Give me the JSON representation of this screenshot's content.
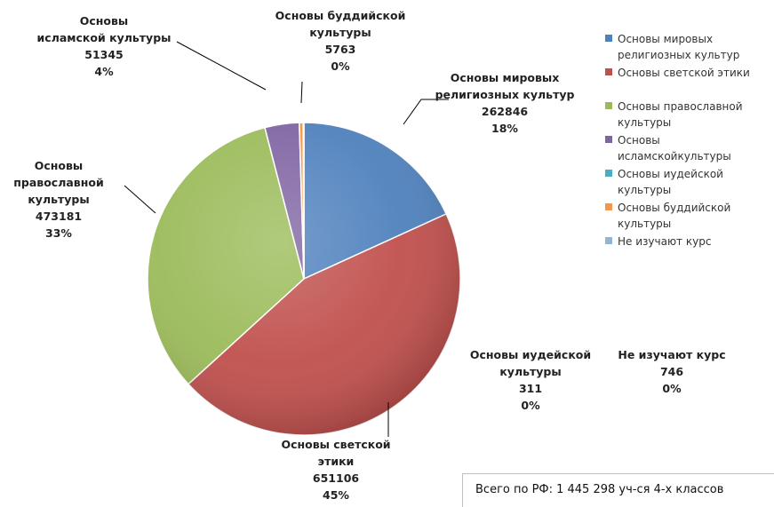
{
  "chart_data": {
    "type": "pie",
    "title": "",
    "slices": [
      {
        "name": "Основы мировых религиозных культур",
        "value": 262846,
        "percent": "18%",
        "color": "#4f81bd",
        "label_lines": [
          "Основы мировых",
          "религиозных культур"
        ]
      },
      {
        "name": "Основы светской этики",
        "value": 651106,
        "percent": "45%",
        "color": "#c0504d",
        "label_lines": [
          "Основы светской",
          "этики"
        ]
      },
      {
        "name": "Основы православной культуры",
        "value": 473181,
        "percent": "33%",
        "color": "#9bbb59",
        "label_lines": [
          "Основы",
          "православной",
          "культуры"
        ]
      },
      {
        "name": "Основы исламскойкультуры",
        "value": 51345,
        "percent": "4%",
        "color": "#8064a2",
        "label_lines": [
          "Основы",
          "исламской культуры"
        ]
      },
      {
        "name": "Основы иудейской культуры",
        "value": 311,
        "percent": "0%",
        "color": "#4bacc6",
        "label_lines": [
          "Основы иудейской",
          "культуры"
        ]
      },
      {
        "name": "Основы буддийской культуры",
        "value": 5763,
        "percent": "0%",
        "color": "#f79646",
        "label_lines": [
          "Основы буддийской",
          "культуры"
        ]
      },
      {
        "name": "Не изучают курс",
        "value": 746,
        "percent": "0%",
        "color": "#95b3d7",
        "label_lines": [
          "Не изучают курс"
        ]
      }
    ],
    "legend": {
      "position": "right",
      "entries": [
        {
          "lines": [
            "Основы мировых",
            "религиозных культур"
          ],
          "color": "#4f81bd"
        },
        {
          "lines": [
            "Основы светской этики"
          ],
          "color": "#c0504d"
        },
        {
          "lines": [
            "Основы православной",
            "культуры"
          ],
          "color": "#9bbb59"
        },
        {
          "lines": [
            "Основы",
            "исламскойкультуры"
          ],
          "color": "#8064a2"
        },
        {
          "lines": [
            "Основы иудейской",
            "культуры"
          ],
          "color": "#4bacc6"
        },
        {
          "lines": [
            "Основы буддийской",
            "культуры"
          ],
          "color": "#f79646"
        },
        {
          "lines": [
            "Не изучают курс"
          ],
          "color": "#95b3d7"
        }
      ]
    },
    "total_note": "Всего по РФ:  1 445 298 уч-ся 4-х классов"
  }
}
